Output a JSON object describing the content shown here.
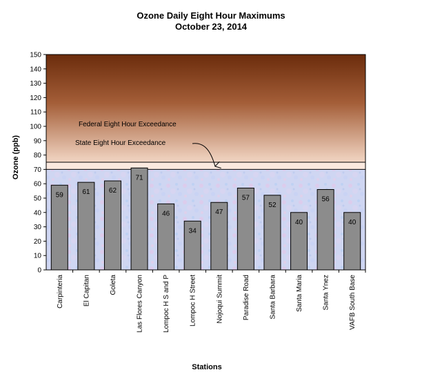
{
  "chart_data": {
    "type": "bar",
    "title": "Ozone Daily Eight Hour Maximums",
    "subtitle": "October 23, 2014",
    "xlabel": "Stations",
    "ylabel": "Ozone (ppb)",
    "ylim": [
      0,
      150
    ],
    "yticks": [
      0,
      10,
      20,
      30,
      40,
      50,
      60,
      70,
      80,
      90,
      100,
      110,
      120,
      130,
      140,
      150
    ],
    "categories": [
      "Carpinteria",
      "El Capitan",
      "Goleta",
      "Las Flores Canyon",
      "Lompoc H S and P",
      "Lompoc H Street",
      "Nojoqui Summit",
      "Paradise Road",
      "Santa Barbara",
      "Santa Maria",
      "Santa Ynez",
      "VAFB South Base"
    ],
    "values": [
      59,
      61,
      62,
      71,
      46,
      34,
      47,
      57,
      52,
      40,
      56,
      40
    ],
    "bar_color": "#8c8c8c",
    "thresholds": [
      {
        "label": "Federal Eight Hour Exceedance",
        "value": 75
      },
      {
        "label": "State Eight Hour Exceedance",
        "value": 70
      }
    ],
    "grid": false,
    "legend": "none"
  }
}
